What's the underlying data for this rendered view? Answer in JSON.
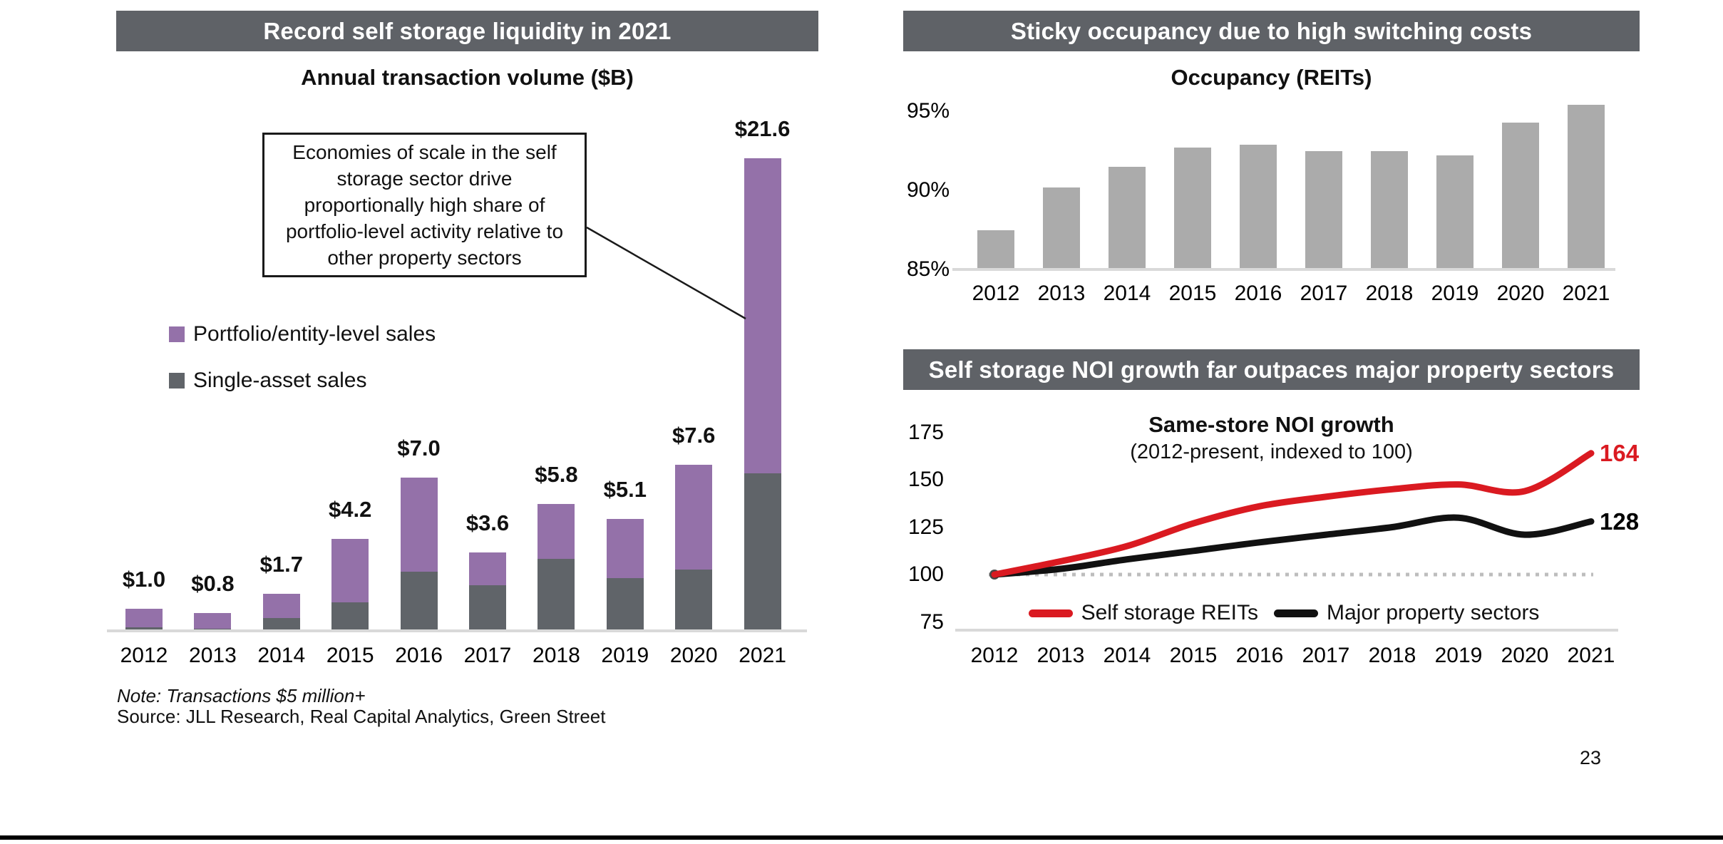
{
  "slide": {
    "page_number": "23"
  },
  "left_panel": {
    "header": "Record self storage liquidity in 2021",
    "title": "Annual transaction volume ($B)",
    "annotation": "Economies of scale in the self storage sector drive proportionally high share of portfolio-level activity relative to other property sectors",
    "note": "Note: Transactions $5 million+",
    "source": "Source: JLL Research, Real Capital Analytics, Green Street",
    "legend": [
      {
        "label": "Portfolio/entity-level sales",
        "color_key": "purple"
      },
      {
        "label": "Single-asset sales",
        "color_key": "dark_gray"
      }
    ]
  },
  "top_right_panel": {
    "header": "Sticky occupancy due to high switching costs",
    "title": "Occupancy (REITs)"
  },
  "bottom_right_panel": {
    "header": "Self storage NOI growth far outpaces major property sectors",
    "title": "Same-store NOI growth",
    "subtitle": "(2012-present, indexed to 100)"
  },
  "colors": {
    "header_bar": "#5f6267",
    "purple": "#9471a9",
    "dark_gray": "#606469",
    "light_gray_bar": "#ababab",
    "red": "#da1a21",
    "black_line": "#111111",
    "axis_line": "#d9d9d9",
    "dotted_line": "#bdbdbd"
  },
  "chart_data": [
    {
      "id": "annual-transaction-volume",
      "type": "bar",
      "stacked": true,
      "title": "Annual transaction volume ($B)",
      "categories": [
        "2012",
        "2013",
        "2014",
        "2015",
        "2016",
        "2017",
        "2018",
        "2019",
        "2020",
        "2021"
      ],
      "series": [
        {
          "name": "Single-asset sales",
          "color_key": "dark_gray",
          "values": [
            0.15,
            0.1,
            0.6,
            1.3,
            2.7,
            2.1,
            3.3,
            2.4,
            2.8,
            7.2
          ]
        },
        {
          "name": "Portfolio/entity-level sales",
          "color_key": "purple",
          "values": [
            0.85,
            0.7,
            1.1,
            2.9,
            4.3,
            1.5,
            2.5,
            2.7,
            4.8,
            14.4
          ]
        }
      ],
      "totals": [
        1.0,
        0.8,
        1.7,
        4.2,
        7.0,
        3.6,
        5.8,
        5.1,
        7.6,
        21.6
      ],
      "total_labels": [
        "$1.0",
        "$0.8",
        "$1.7",
        "$4.2",
        "$7.0",
        "$3.6",
        "$5.8",
        "$5.1",
        "$7.6",
        "$21.6"
      ],
      "ylim": [
        0,
        22
      ],
      "grid": false,
      "legend_position": "upper-left"
    },
    {
      "id": "occupancy-reits",
      "type": "bar",
      "title": "Occupancy (REITs)",
      "categories": [
        "2012",
        "2013",
        "2014",
        "2015",
        "2016",
        "2017",
        "2018",
        "2019",
        "2020",
        "2021"
      ],
      "values": [
        87.5,
        90.2,
        91.5,
        92.7,
        92.9,
        92.5,
        92.5,
        92.2,
        94.3,
        95.4
      ],
      "yticks": [
        {
          "value": 95,
          "label": "95%"
        },
        {
          "value": 90,
          "label": "90%"
        },
        {
          "value": 85,
          "label": "85%"
        }
      ],
      "ylim": [
        85,
        96
      ],
      "grid": false
    },
    {
      "id": "same-store-noi-growth",
      "type": "line",
      "title": "Same-store NOI growth",
      "subtitle": "(2012-present, indexed to 100)",
      "categories": [
        "2012",
        "2013",
        "2014",
        "2015",
        "2016",
        "2017",
        "2018",
        "2019",
        "2020",
        "2021"
      ],
      "series": [
        {
          "name": "Self storage REITs",
          "color_key": "red",
          "end_label": "164",
          "values": [
            100,
            107,
            115,
            127,
            136,
            141,
            145,
            147.5,
            144,
            164
          ]
        },
        {
          "name": "Major property sectors",
          "color_key": "black_line",
          "end_label": "128",
          "values": [
            100,
            103,
            108,
            112.5,
            117,
            121,
            125,
            130,
            121,
            128
          ]
        }
      ],
      "baseline_value": 100,
      "yticks": [
        {
          "value": 175,
          "label": "175"
        },
        {
          "value": 150,
          "label": "150"
        },
        {
          "value": 125,
          "label": "125"
        },
        {
          "value": 100,
          "label": "100"
        },
        {
          "value": 75,
          "label": "75"
        }
      ],
      "ylim": [
        75,
        175
      ],
      "grid": false,
      "legend_position": "bottom-center"
    }
  ]
}
